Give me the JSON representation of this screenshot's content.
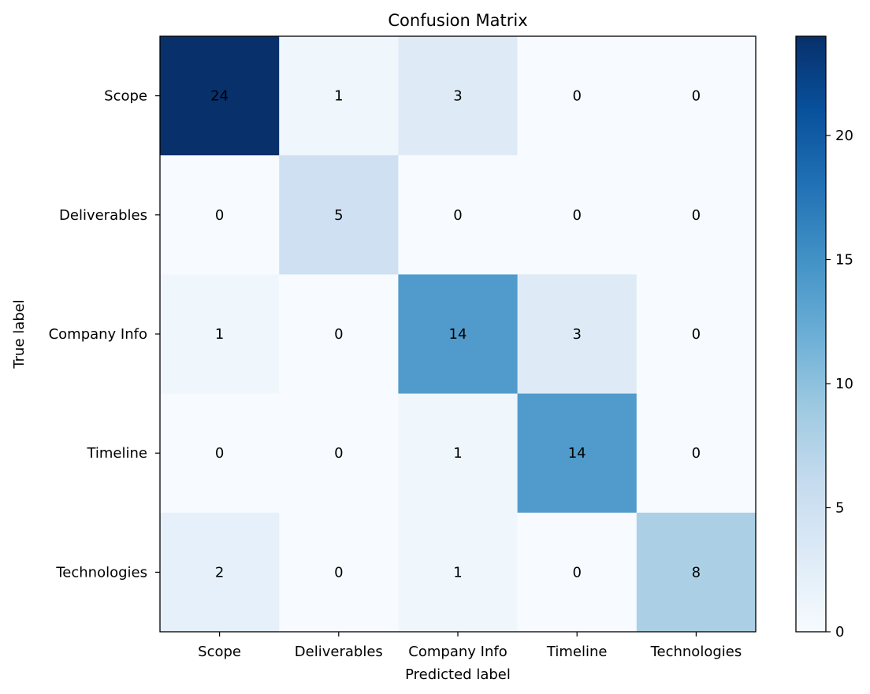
{
  "chart_data": {
    "type": "heatmap",
    "title": "Confusion Matrix",
    "xlabel": "Predicted label",
    "ylabel": "True label",
    "x_categories": [
      "Scope",
      "Deliverables",
      "Company Info",
      "Timeline",
      "Technologies"
    ],
    "y_categories": [
      "Scope",
      "Deliverables",
      "Company Info",
      "Timeline",
      "Technologies"
    ],
    "matrix": [
      [
        24,
        1,
        3,
        0,
        0
      ],
      [
        0,
        5,
        0,
        0,
        0
      ],
      [
        1,
        0,
        14,
        3,
        0
      ],
      [
        0,
        0,
        1,
        14,
        0
      ],
      [
        2,
        0,
        1,
        0,
        8
      ]
    ],
    "colorbar": {
      "colormap": "Blues",
      "range": [
        0,
        24
      ],
      "ticks": [
        0,
        5,
        10,
        15,
        20
      ]
    },
    "grid": false
  }
}
